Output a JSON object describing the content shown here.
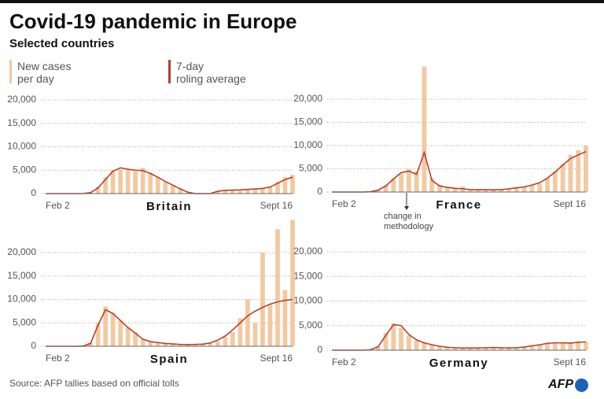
{
  "title": "Covid-19 pandemic in Europe",
  "subtitle": "Selected countries",
  "source": "Source: AFP tallies based on official tolls",
  "logo": "AFP",
  "annotation": "change in\nmethodology",
  "chart_data": [
    {
      "type": "bar-line",
      "title": "Britain",
      "categories": [
        "Feb 2",
        null,
        null,
        null,
        null,
        null,
        null,
        null,
        null,
        null,
        null,
        null,
        null,
        null,
        null,
        null,
        null,
        null,
        null,
        null,
        null,
        null,
        null,
        null,
        null,
        null,
        null,
        null,
        null,
        null,
        null,
        null,
        null,
        "Sept 16"
      ],
      "ylim": [
        0,
        20000
      ],
      "yticks": [
        0,
        {
          "value": 5000,
          "label": "5,000"
        },
        {
          "value": 10000,
          "label": "10,000"
        },
        {
          "value": 15000,
          "label": "15,000"
        },
        {
          "value": 20000,
          "label": "20,000"
        }
      ],
      "grid": true,
      "series": [
        {
          "name": "New cases\nper day",
          "color": "#f2c9a0",
          "values": [
            0,
            0,
            0,
            0,
            0,
            50,
            300,
            1500,
            3500,
            5000,
            5200,
            5000,
            4800,
            5500,
            4500,
            3500,
            2500,
            1800,
            1200,
            200,
            0,
            0,
            0,
            600,
            800,
            700,
            800,
            900,
            1000,
            1100,
            1500,
            2500,
            3500,
            4000
          ]
        },
        {
          "name": "7-day\nroling average",
          "color": "#b5412a",
          "values": [
            0,
            0,
            0,
            0,
            0,
            20,
            200,
            1200,
            3000,
            4800,
            5500,
            5200,
            5000,
            4900,
            4300,
            3500,
            2600,
            1800,
            1000,
            300,
            0,
            0,
            0,
            500,
            700,
            750,
            800,
            900,
            1000,
            1100,
            1400,
            2200,
            3000,
            3500
          ]
        }
      ]
    },
    {
      "type": "bar-line",
      "title": "France",
      "categories": [
        "Feb 2",
        null,
        null,
        null,
        null,
        null,
        null,
        null,
        null,
        null,
        null,
        null,
        null,
        null,
        null,
        null,
        null,
        null,
        null,
        null,
        null,
        null,
        null,
        null,
        null,
        null,
        null,
        null,
        null,
        null,
        null,
        null,
        null,
        "Sept 16"
      ],
      "ylim": [
        0,
        27000
      ],
      "yticks": [
        0,
        {
          "value": 5000,
          "label": "5,000"
        },
        {
          "value": 10000,
          "label": "10,000"
        },
        {
          "value": 15000,
          "label": "15,000"
        },
        {
          "value": 20000,
          "label": "20,000"
        }
      ],
      "grid": true,
      "series": [
        {
          "color": "#f2c9a0",
          "values": [
            0,
            0,
            0,
            0,
            0,
            100,
            500,
            1500,
            3000,
            4000,
            5000,
            4500,
            27000,
            3000,
            1500,
            1000,
            800,
            1200,
            300,
            500,
            600,
            400,
            500,
            700,
            800,
            1000,
            1500,
            1800,
            3000,
            4500,
            6000,
            8000,
            9000,
            10000
          ]
        },
        {
          "color": "#b5412a",
          "values": [
            0,
            0,
            0,
            0,
            0,
            50,
            400,
            1300,
            2800,
            4200,
            4500,
            3800,
            8500,
            2500,
            1300,
            1000,
            800,
            700,
            500,
            500,
            500,
            450,
            500,
            700,
            900,
            1100,
            1500,
            2000,
            3000,
            4300,
            5800,
            7200,
            8000,
            8700
          ]
        }
      ]
    },
    {
      "type": "bar-line",
      "title": "Spain",
      "categories": [
        "Feb 2",
        null,
        null,
        null,
        null,
        null,
        null,
        null,
        null,
        null,
        null,
        null,
        null,
        null,
        null,
        null,
        null,
        null,
        null,
        null,
        null,
        null,
        null,
        null,
        null,
        null,
        null,
        null,
        null,
        null,
        null,
        null,
        null,
        "Sept 16"
      ],
      "ylim": [
        0,
        28000
      ],
      "yticks": [
        0,
        {
          "value": 5000,
          "label": "5,000"
        },
        {
          "value": 10000,
          "label": "10,000"
        },
        {
          "value": 15000,
          "label": "15,000"
        },
        {
          "value": 20000,
          "label": "20,000"
        }
      ],
      "grid": true,
      "series": [
        {
          "color": "#f2c9a0",
          "values": [
            0,
            0,
            0,
            0,
            0,
            50,
            800,
            5000,
            8500,
            7000,
            5500,
            4000,
            3000,
            1500,
            1000,
            800,
            500,
            600,
            300,
            300,
            400,
            400,
            600,
            1000,
            2000,
            3000,
            6000,
            10000,
            5000,
            20000,
            9000,
            25000,
            12000,
            27000
          ]
        },
        {
          "color": "#b5412a",
          "values": [
            0,
            0,
            0,
            0,
            0,
            30,
            600,
            4500,
            7800,
            7000,
            5500,
            4000,
            2800,
            1500,
            1000,
            800,
            600,
            500,
            400,
            350,
            400,
            450,
            700,
            1300,
            2200,
            3500,
            5000,
            6500,
            7500,
            8300,
            9000,
            9500,
            9800,
            10000
          ]
        }
      ]
    },
    {
      "type": "bar-line",
      "title": "Germany",
      "categories": [
        "Feb 2",
        null,
        null,
        null,
        null,
        null,
        null,
        null,
        null,
        null,
        null,
        null,
        null,
        null,
        null,
        null,
        null,
        null,
        null,
        null,
        null,
        null,
        null,
        null,
        null,
        null,
        null,
        null,
        null,
        null,
        null,
        null,
        null,
        "Sept 16"
      ],
      "ylim": [
        0,
        20000
      ],
      "yticks": [
        0,
        {
          "value": 5000,
          "label": "5,000"
        },
        {
          "value": 10000,
          "label": "10,000"
        },
        {
          "value": 15000,
          "label": "15,000"
        },
        {
          "value": 20000,
          "label": "20,000"
        }
      ],
      "grid": true,
      "series": [
        {
          "color": "#f2c9a0",
          "values": [
            0,
            0,
            0,
            0,
            0,
            100,
            800,
            3500,
            5500,
            4500,
            3000,
            2000,
            1500,
            1200,
            800,
            600,
            500,
            400,
            500,
            400,
            500,
            600,
            500,
            400,
            500,
            700,
            1000,
            1200,
            1500,
            1600,
            1500,
            1400,
            1800,
            1700
          ]
        },
        {
          "color": "#b5412a",
          "values": [
            0,
            0,
            0,
            0,
            0,
            80,
            700,
            3000,
            5200,
            5000,
            3200,
            2100,
            1500,
            1100,
            800,
            600,
            500,
            450,
            450,
            450,
            500,
            550,
            500,
            450,
            500,
            650,
            900,
            1100,
            1400,
            1500,
            1500,
            1450,
            1600,
            1700
          ]
        }
      ]
    }
  ]
}
